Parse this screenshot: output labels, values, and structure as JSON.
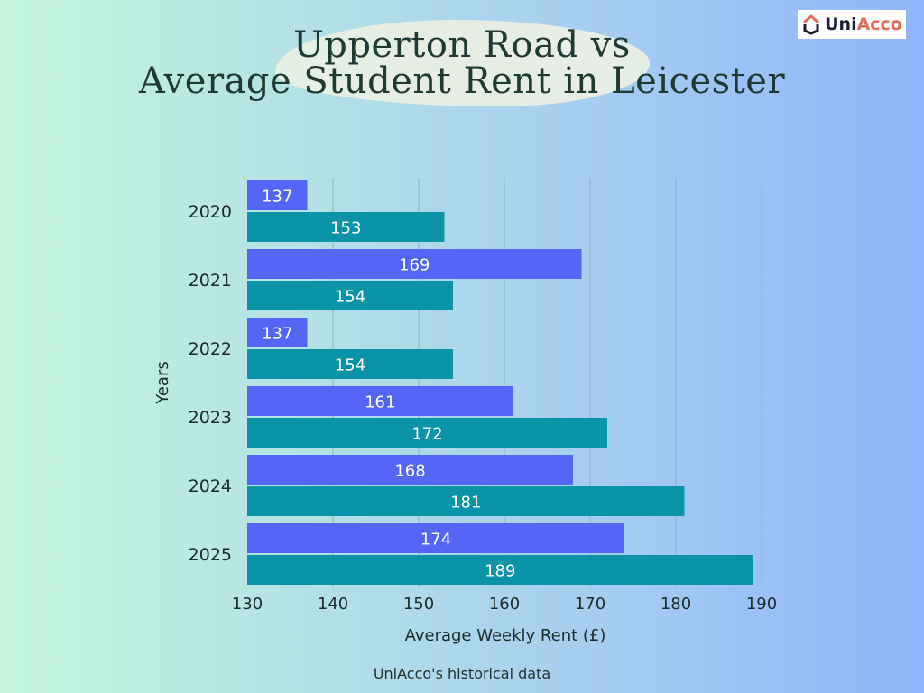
{
  "title_lines": [
    "Upperton Road vs",
    "Average Student Rent in Leicester"
  ],
  "logo": {
    "text_dark": "Uni",
    "text_accent": "Acco"
  },
  "source_note": "UniAcco's historical data",
  "colors": {
    "series_a": "#5565f5",
    "series_b": "#0b93a8",
    "grid": "#8fb3c0"
  },
  "chart_data": {
    "type": "bar",
    "orientation": "horizontal",
    "categories": [
      "2020",
      "2021",
      "2022",
      "2023",
      "2024",
      "2025"
    ],
    "series": [
      {
        "values": [
          137,
          169,
          137,
          161,
          168,
          174
        ],
        "color": "#5565f5"
      },
      {
        "values": [
          153,
          154,
          154,
          172,
          181,
          189
        ],
        "color": "#0b93a8"
      }
    ],
    "xlabel": "Average Weekly Rent (£)",
    "ylabel": "Years",
    "xlim": [
      130,
      190
    ],
    "xticks": [
      130,
      140,
      150,
      160,
      170,
      180,
      190
    ],
    "grid": true,
    "data_labels": true
  }
}
